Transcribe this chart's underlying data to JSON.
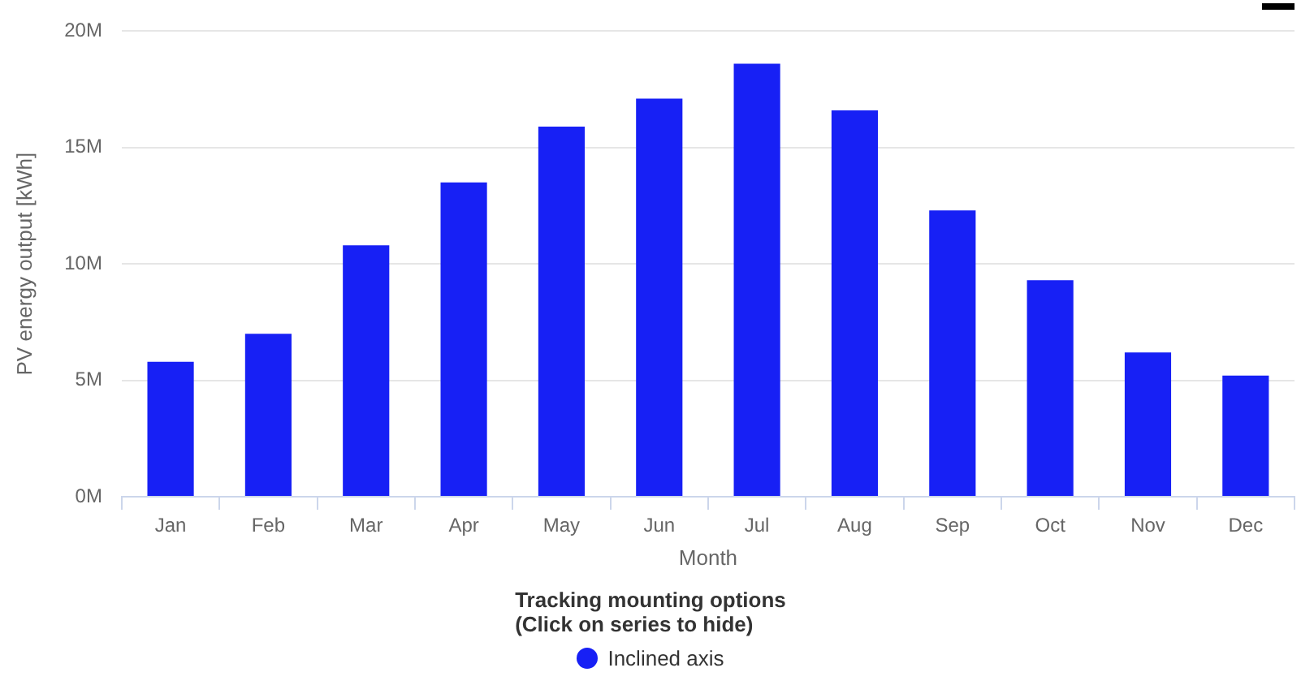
{
  "chart_data": {
    "type": "bar",
    "xlabel": "Month",
    "ylabel": "PV energy output [kWh]",
    "legend_title": "Tracking mounting options\n(Click on series to hide)",
    "legend": "bottom",
    "grid": "y",
    "categories": [
      "Jan",
      "Feb",
      "Mar",
      "Apr",
      "May",
      "Jun",
      "Jul",
      "Aug",
      "Sep",
      "Oct",
      "Nov",
      "Dec"
    ],
    "series": [
      {
        "name": "Inclined axis",
        "color": "#1720f5",
        "values": [
          5800000,
          7000000,
          10800000,
          13500000,
          15900000,
          17100000,
          18600000,
          16600000,
          12300000,
          9300000,
          6200000,
          5200000
        ]
      }
    ],
    "ylim": [
      0,
      20000000
    ],
    "yticks": [
      {
        "value": 0,
        "label": "0M"
      },
      {
        "value": 5000000,
        "label": "5M"
      },
      {
        "value": 10000000,
        "label": "10M"
      },
      {
        "value": 15000000,
        "label": "15M"
      },
      {
        "value": 20000000,
        "label": "20M"
      }
    ]
  }
}
